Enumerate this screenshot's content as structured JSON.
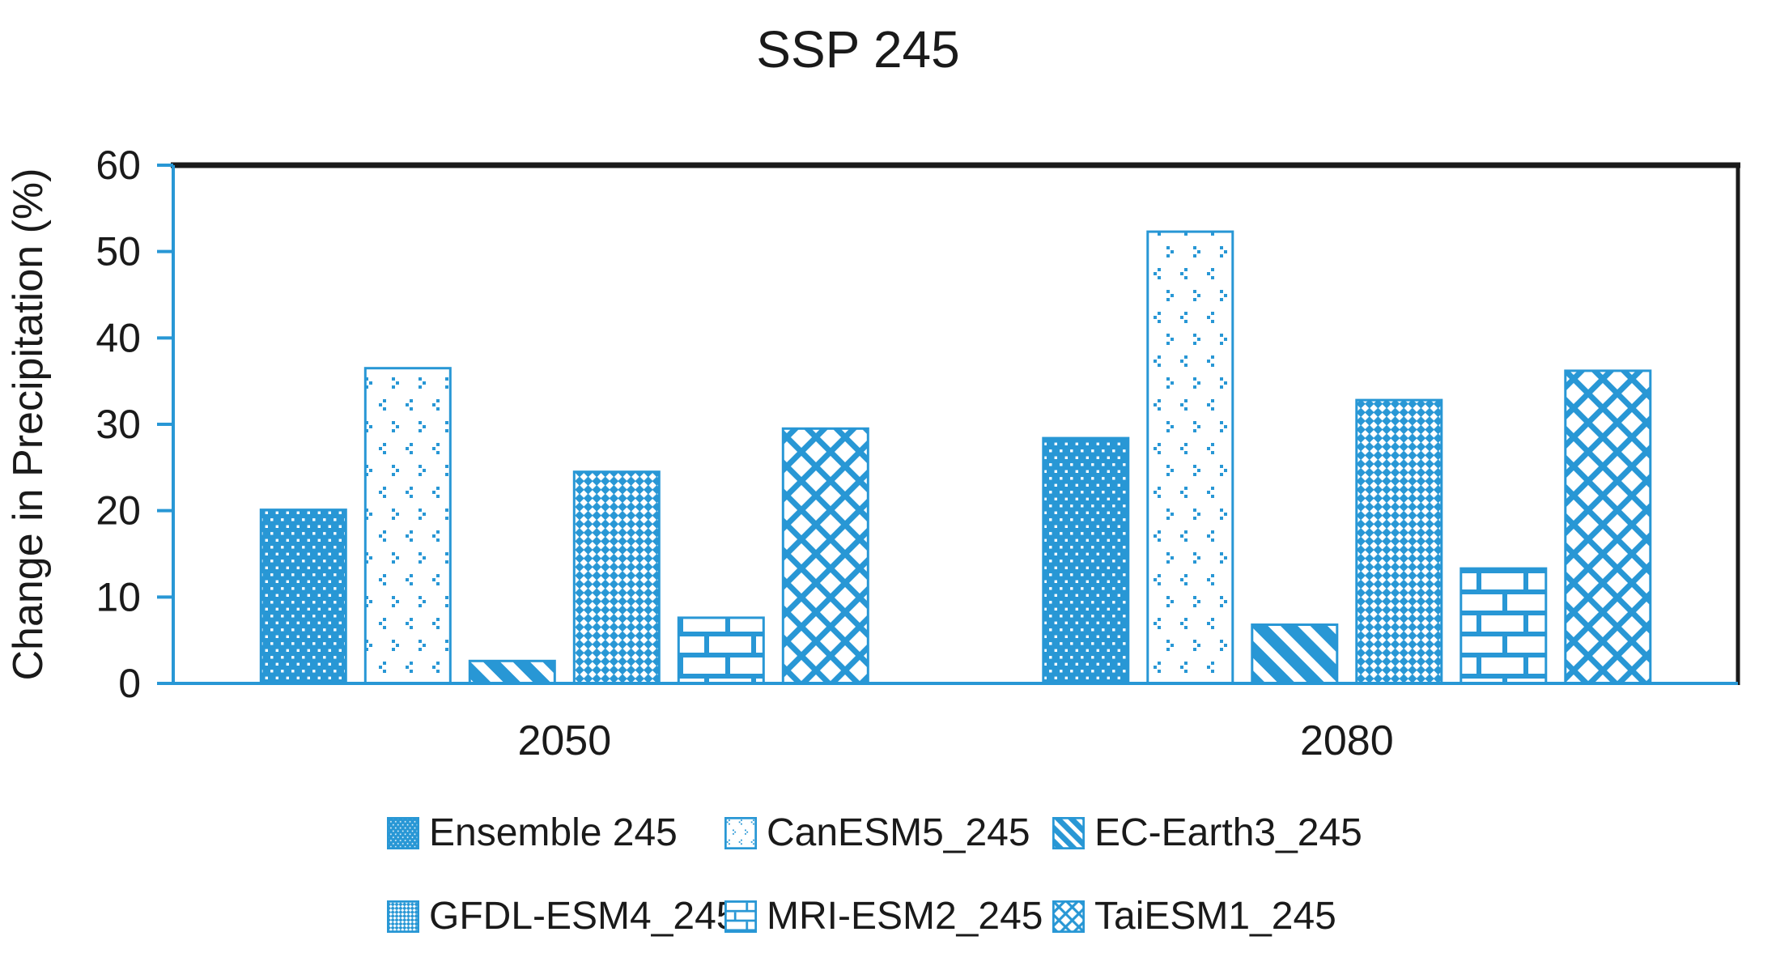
{
  "accent_color": "#2897D5",
  "border_color": "#1a1a1a",
  "chart_data": {
    "type": "bar",
    "title": "SSP 245",
    "categories": [
      "2050",
      "2080"
    ],
    "series": [
      {
        "name": "Ensemble 245",
        "pattern": "white-dots-on-solid",
        "values": [
          20.1,
          28.4
        ]
      },
      {
        "name": "CanESM5_245",
        "pattern": "chevron-dots",
        "values": [
          36.5,
          52.3
        ]
      },
      {
        "name": "EC-Earth3_245",
        "pattern": "diagonal-stripes",
        "values": [
          2.6,
          6.8
        ]
      },
      {
        "name": "GFDL-ESM4_245",
        "pattern": "small-checker",
        "values": [
          24.5,
          32.8
        ]
      },
      {
        "name": "MRI-ESM2_245",
        "pattern": "brick",
        "values": [
          7.6,
          13.3
        ]
      },
      {
        "name": "TaiESM1_245",
        "pattern": "diamond-crosshatch",
        "values": [
          29.5,
          36.2
        ]
      }
    ],
    "xlabel": "",
    "ylabel": "Change in Precipitation (%)",
    "ylim": [
      0,
      60
    ],
    "ytick_step": 10,
    "yticks": [
      "0",
      "10",
      "20",
      "30",
      "40",
      "50",
      "60"
    ],
    "grid": false,
    "legend_position": "bottom"
  }
}
